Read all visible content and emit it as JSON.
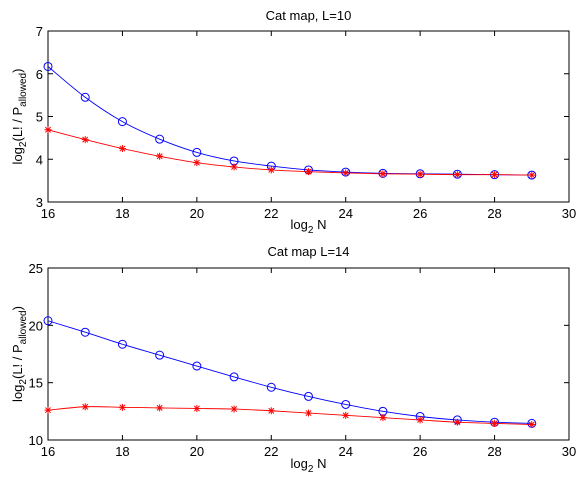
{
  "chart_data": [
    {
      "type": "line",
      "title": "Cat map, L=10",
      "xlabel": {
        "base": "log",
        "sub": "2",
        "rest": " N"
      },
      "ylabel": {
        "pre": "log",
        "sub1": "2",
        "mid": "(L! / P",
        "sub2": "allowed",
        "post": ")"
      },
      "xlim": [
        16,
        30
      ],
      "ylim": [
        3,
        7
      ],
      "xticks": [
        16,
        18,
        20,
        22,
        24,
        26,
        28,
        30
      ],
      "yticks": [
        3,
        4,
        5,
        6,
        7
      ],
      "x": [
        16,
        17,
        18,
        19,
        20,
        21,
        22,
        23,
        24,
        25,
        26,
        27,
        28,
        29
      ],
      "series": [
        {
          "marker": "circle",
          "color": "#0000ff",
          "values": [
            6.17,
            5.45,
            4.88,
            4.47,
            4.16,
            3.96,
            3.84,
            3.75,
            3.7,
            3.67,
            3.66,
            3.65,
            3.64,
            3.63
          ]
        },
        {
          "marker": "star",
          "color": "#ff0000",
          "values": [
            4.69,
            4.46,
            4.25,
            4.07,
            3.92,
            3.82,
            3.75,
            3.71,
            3.68,
            3.66,
            3.65,
            3.64,
            3.64,
            3.63
          ]
        }
      ]
    },
    {
      "type": "line",
      "title": "Cat map L=14",
      "xlabel": {
        "base": "log",
        "sub": "2",
        "rest": " N"
      },
      "ylabel": {
        "pre": "log",
        "sub1": "2",
        "mid": "(L! / P",
        "sub2": "allowed",
        "post": ")"
      },
      "xlim": [
        16,
        30
      ],
      "ylim": [
        10,
        25
      ],
      "xticks": [
        16,
        18,
        20,
        22,
        24,
        26,
        28,
        30
      ],
      "yticks": [
        10,
        15,
        20,
        25
      ],
      "x": [
        16,
        17,
        18,
        19,
        20,
        21,
        22,
        23,
        24,
        25,
        26,
        27,
        28,
        29
      ],
      "series": [
        {
          "marker": "circle",
          "color": "#0000ff",
          "values": [
            20.4,
            19.4,
            18.35,
            17.4,
            16.45,
            15.5,
            14.6,
            13.8,
            13.1,
            12.5,
            12.05,
            11.75,
            11.55,
            11.45
          ]
        },
        {
          "marker": "star",
          "color": "#ff0000",
          "values": [
            12.6,
            12.9,
            12.85,
            12.8,
            12.75,
            12.7,
            12.55,
            12.35,
            12.15,
            11.95,
            11.75,
            11.55,
            11.45,
            11.35
          ]
        }
      ]
    }
  ]
}
